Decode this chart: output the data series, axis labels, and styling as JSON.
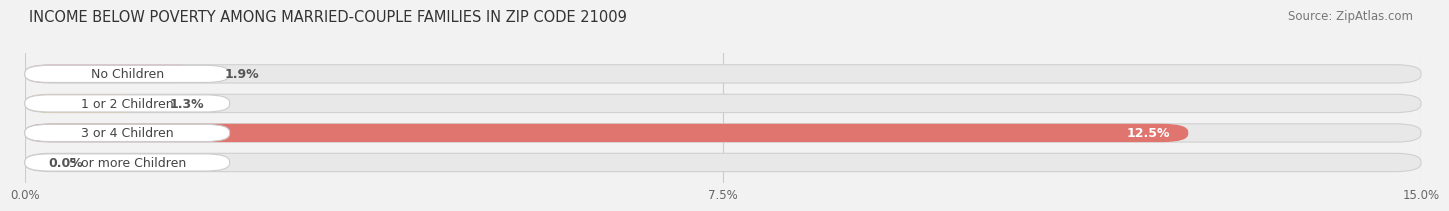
{
  "title": "INCOME BELOW POVERTY AMONG MARRIED-COUPLE FAMILIES IN ZIP CODE 21009",
  "source": "Source: ZipAtlas.com",
  "categories": [
    "No Children",
    "1 or 2 Children",
    "3 or 4 Children",
    "5 or more Children"
  ],
  "values": [
    1.9,
    1.3,
    12.5,
    0.0
  ],
  "bar_colors": [
    "#f4a0b5",
    "#f5c98a",
    "#e07570",
    "#a8c8e8"
  ],
  "label_colors": [
    "#555555",
    "#555555",
    "#ffffff",
    "#555555"
  ],
  "xlim": [
    0,
    15.0
  ],
  "xticks": [
    0.0,
    7.5,
    15.0
  ],
  "xticklabels": [
    "0.0%",
    "7.5%",
    "15.0%"
  ],
  "background_color": "#f2f2f2",
  "bar_bg_color": "#e8e8e8",
  "title_fontsize": 10.5,
  "source_fontsize": 8.5,
  "bar_height": 0.62,
  "bar_label_fontsize": 9,
  "category_fontsize": 9
}
